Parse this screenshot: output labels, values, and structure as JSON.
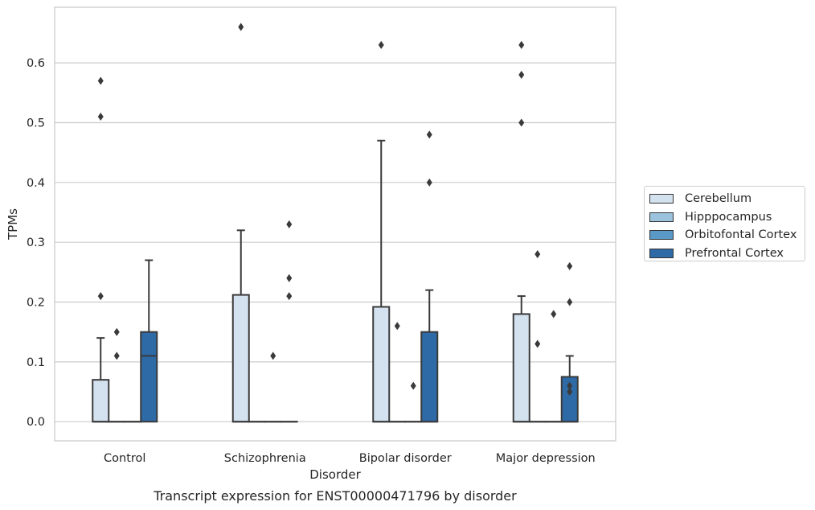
{
  "chart_data": {
    "type": "box",
    "title": "",
    "caption": "Transcript expression for ENST00000471796 by disorder",
    "xlabel": "Disorder",
    "ylabel": "TPMs",
    "ylim": [
      -0.032,
      0.693
    ],
    "yticks": [
      0.0,
      0.1,
      0.2,
      0.3,
      0.4,
      0.5,
      0.6
    ],
    "yticklabels": [
      "0.0",
      "0.1",
      "0.2",
      "0.3",
      "0.4",
      "0.5",
      "0.6"
    ],
    "grid": true,
    "legend_position": "right, outside plot",
    "categories": [
      "Control",
      "Schizophrenia",
      "Bipolar disorder",
      "Major depression"
    ],
    "series": [
      {
        "name": "Cerebellum",
        "color": "#d4e2f0",
        "boxes": [
          {
            "q1": 0.0,
            "median": 0.0,
            "q3": 0.07,
            "whisker_low": 0.0,
            "whisker_high": 0.14,
            "outliers": [
              0.21,
              0.51,
              0.57
            ]
          },
          {
            "q1": 0.0,
            "median": 0.0,
            "q3": 0.212,
            "whisker_low": 0.0,
            "whisker_high": 0.32,
            "outliers": [
              0.66
            ]
          },
          {
            "q1": 0.0,
            "median": 0.0,
            "q3": 0.192,
            "whisker_low": 0.0,
            "whisker_high": 0.47,
            "outliers": [
              0.63
            ]
          },
          {
            "q1": 0.0,
            "median": 0.0,
            "q3": 0.18,
            "whisker_low": 0.0,
            "whisker_high": 0.21,
            "outliers": [
              0.5,
              0.58,
              0.63
            ]
          }
        ]
      },
      {
        "name": "Hipppocampus",
        "color": "#9cc3dd",
        "boxes": [
          {
            "q1": 0.0,
            "median": 0.0,
            "q3": 0.0,
            "whisker_low": 0.0,
            "whisker_high": 0.0,
            "outliers": [
              0.11,
              0.15
            ]
          },
          {
            "q1": 0.0,
            "median": 0.0,
            "q3": 0.0,
            "whisker_low": 0.0,
            "whisker_high": 0.0,
            "outliers": []
          },
          {
            "q1": 0.0,
            "median": 0.0,
            "q3": 0.0,
            "whisker_low": 0.0,
            "whisker_high": 0.0,
            "outliers": [
              0.16
            ]
          },
          {
            "q1": 0.0,
            "median": 0.0,
            "q3": 0.0,
            "whisker_low": 0.0,
            "whisker_high": 0.0,
            "outliers": [
              0.13,
              0.28
            ]
          }
        ]
      },
      {
        "name": "Orbitofontal Cortex",
        "color": "#5a98c6",
        "boxes": [
          {
            "q1": 0.0,
            "median": 0.0,
            "q3": 0.0,
            "whisker_low": 0.0,
            "whisker_high": 0.0,
            "outliers": []
          },
          {
            "q1": 0.0,
            "median": 0.0,
            "q3": 0.0,
            "whisker_low": 0.0,
            "whisker_high": 0.0,
            "outliers": [
              0.11
            ]
          },
          {
            "q1": 0.0,
            "median": 0.0,
            "q3": 0.0,
            "whisker_low": 0.0,
            "whisker_high": 0.0,
            "outliers": [
              0.06
            ]
          },
          {
            "q1": 0.0,
            "median": 0.0,
            "q3": 0.0,
            "whisker_low": 0.0,
            "whisker_high": 0.0,
            "outliers": [
              0.18
            ]
          }
        ]
      },
      {
        "name": "Prefrontal Cortex",
        "color": "#2d6aa6",
        "boxes": [
          {
            "q1": 0.0,
            "median": 0.11,
            "q3": 0.15,
            "whisker_low": 0.0,
            "whisker_high": 0.27,
            "outliers": []
          },
          {
            "q1": 0.0,
            "median": 0.0,
            "q3": 0.0,
            "whisker_low": 0.0,
            "whisker_high": 0.0,
            "outliers": [
              0.21,
              0.24,
              0.33
            ]
          },
          {
            "q1": 0.0,
            "median": 0.0,
            "q3": 0.15,
            "whisker_low": 0.0,
            "whisker_high": 0.22,
            "outliers": [
              0.4,
              0.48
            ]
          },
          {
            "q1": 0.0,
            "median": 0.0,
            "q3": 0.075,
            "whisker_low": 0.0,
            "whisker_high": 0.11,
            "outliers": [
              0.05,
              0.06,
              0.2,
              0.26
            ]
          }
        ]
      }
    ]
  },
  "colors": {
    "grid": "#cccccc",
    "axes_edge": "#cccccc",
    "box_edge": "#3a3a3a",
    "outlier": "#3a3a3a"
  }
}
